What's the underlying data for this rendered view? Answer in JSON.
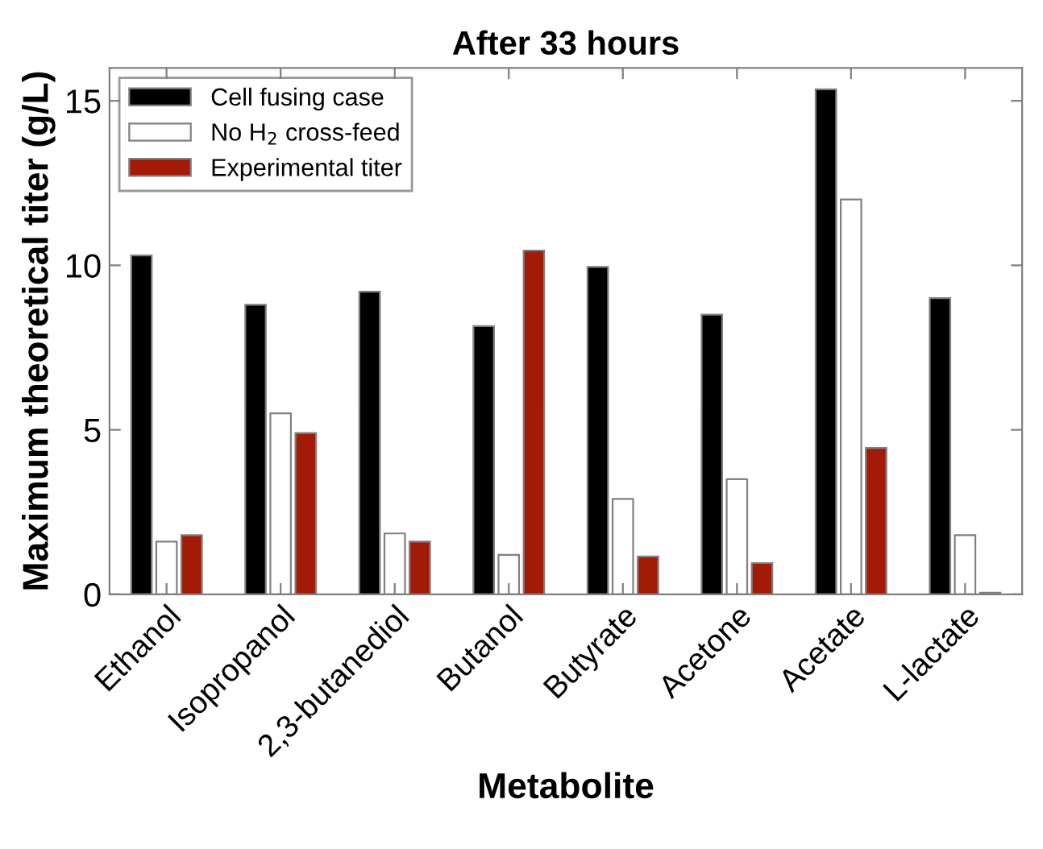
{
  "chart_data": {
    "type": "bar",
    "title": "After 33 hours",
    "xlabel": "Metabolite",
    "ylabel": "Maximum theoretical titer (g/L)",
    "categories": [
      "Ethanol",
      "Isopropanol",
      "2,3-butanediol",
      "Butanol",
      "Butyrate",
      "Acetone",
      "Acetate",
      "L-lactate"
    ],
    "series": [
      {
        "name": "Cell fusing case",
        "color": "#000000",
        "values": [
          10.3,
          8.8,
          9.2,
          8.15,
          9.95,
          8.5,
          15.35,
          9.0
        ]
      },
      {
        "name": "No H$_{2}$ cross-feed",
        "color": "#ffffff",
        "values": [
          1.6,
          5.5,
          1.85,
          1.2,
          2.9,
          3.5,
          12.0,
          1.8
        ]
      },
      {
        "name": "Experimental titer",
        "color": "#a31a06",
        "values": [
          1.8,
          4.9,
          1.6,
          10.45,
          1.15,
          0.95,
          4.45,
          0.05
        ]
      }
    ],
    "ylim": [
      0,
      16
    ],
    "yticks": [
      0,
      5,
      10,
      15
    ],
    "grid": false,
    "legend": "top left"
  }
}
